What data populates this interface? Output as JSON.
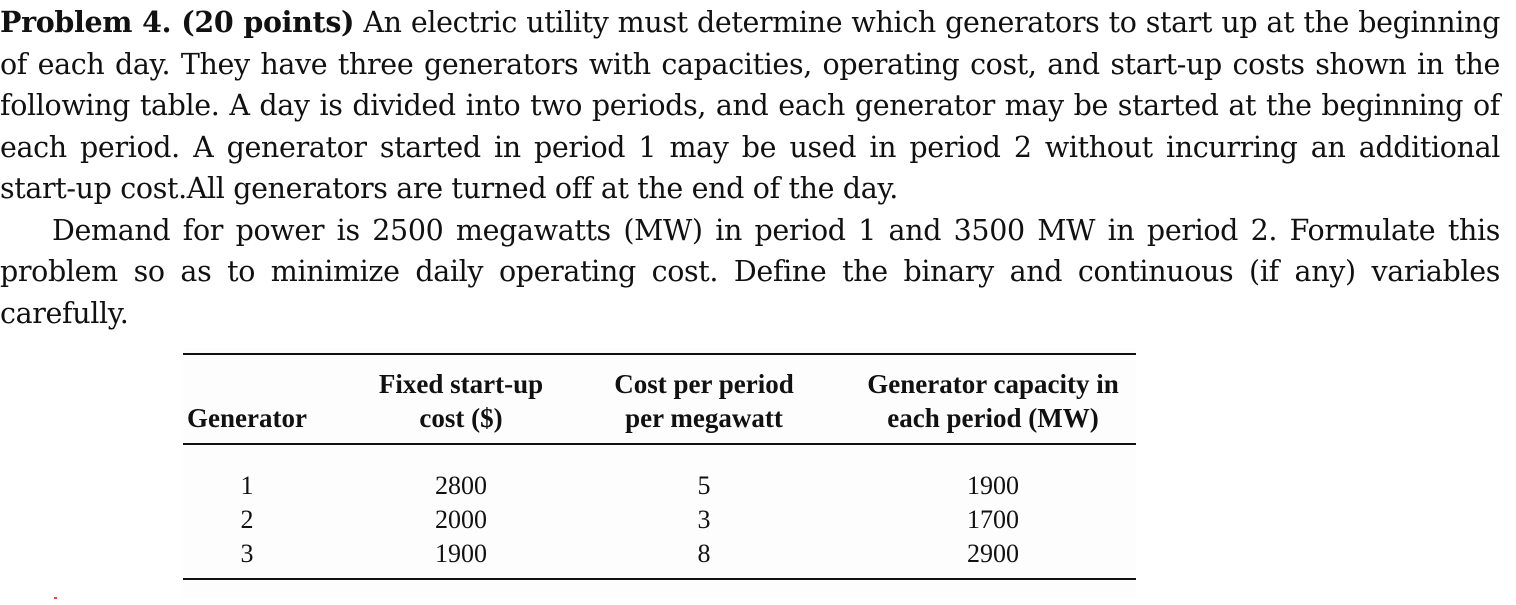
{
  "problem": {
    "heading": "Problem 4.  (20 points)",
    "paragraph1": "An electric utility must determine which generators to start up at the beginning of each day. They have three generators with capacities, operating cost, and start-up costs shown in the following table. A day is divided into two periods, and each generator may be started at the beginning of each period. A generator started in period 1 may be used in period 2 without incurring an additional start-up cost.All generators are turned off at the end of the day.",
    "paragraph2": "Demand for power is 2500 megawatts (MW) in period 1 and 3500 MW in period 2. Formulate this problem so as to minimize daily operating cost. Define the binary and continuous (if any) variables carefully."
  },
  "table": {
    "headers": [
      [
        "Generator"
      ],
      [
        "Fixed start-up",
        "cost ($)"
      ],
      [
        "Cost per period",
        "per megawatt"
      ],
      [
        "Generator capacity in",
        "each period (MW)"
      ]
    ],
    "rows": [
      [
        "1",
        "2800",
        "5",
        "1900"
      ],
      [
        "2",
        "2000",
        "3",
        "1700"
      ],
      [
        "3",
        "1900",
        "8",
        "2900"
      ]
    ]
  },
  "colors": {
    "text": "#111111",
    "stray_mark": "#e44444"
  }
}
